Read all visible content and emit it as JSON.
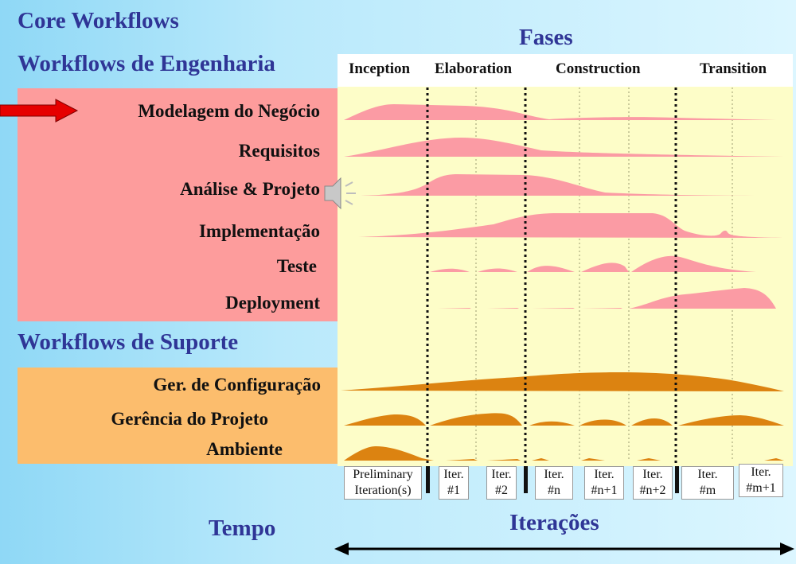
{
  "slide_title": "Core Workflows",
  "fases_label": "Fases",
  "engineering_section": "Workflows de Engenharia",
  "support_section": "Workflows de Suporte",
  "phases": [
    "Inception",
    "Elaboration",
    "Construction",
    "Transition"
  ],
  "engineering_workflows": [
    "Modelagem do Negócio",
    "Requisitos",
    "Análise & Projeto",
    "Implementação",
    "Teste",
    "Deployment"
  ],
  "support_workflows": [
    "Ger. de Configuração",
    "Gerência do Projeto",
    "Ambiente"
  ],
  "iterations": [
    "Preliminary\nIteration(s)",
    "Iter.\n#1",
    "Iter.\n#2",
    "Iter.\n#n",
    "Iter.\n#n+1",
    "Iter.\n#n+2",
    "Iter.\n#m",
    "Iter.\n#m+1"
  ],
  "tempo_label": "Tempo",
  "iteracoes_label": "Iterações",
  "colors": {
    "title_blue": "#2f3596",
    "engineering_panel": "#fd9c9c",
    "support_panel": "#fcbd6d",
    "chart_background": "#fdfdc8",
    "engineering_hump": "#fb9ba4",
    "support_hump": "#dc8311",
    "arrow_red": "#e60000"
  },
  "icons": [
    "red-arrow-icon",
    "speaker-icon",
    "double-arrow-icon"
  ]
}
